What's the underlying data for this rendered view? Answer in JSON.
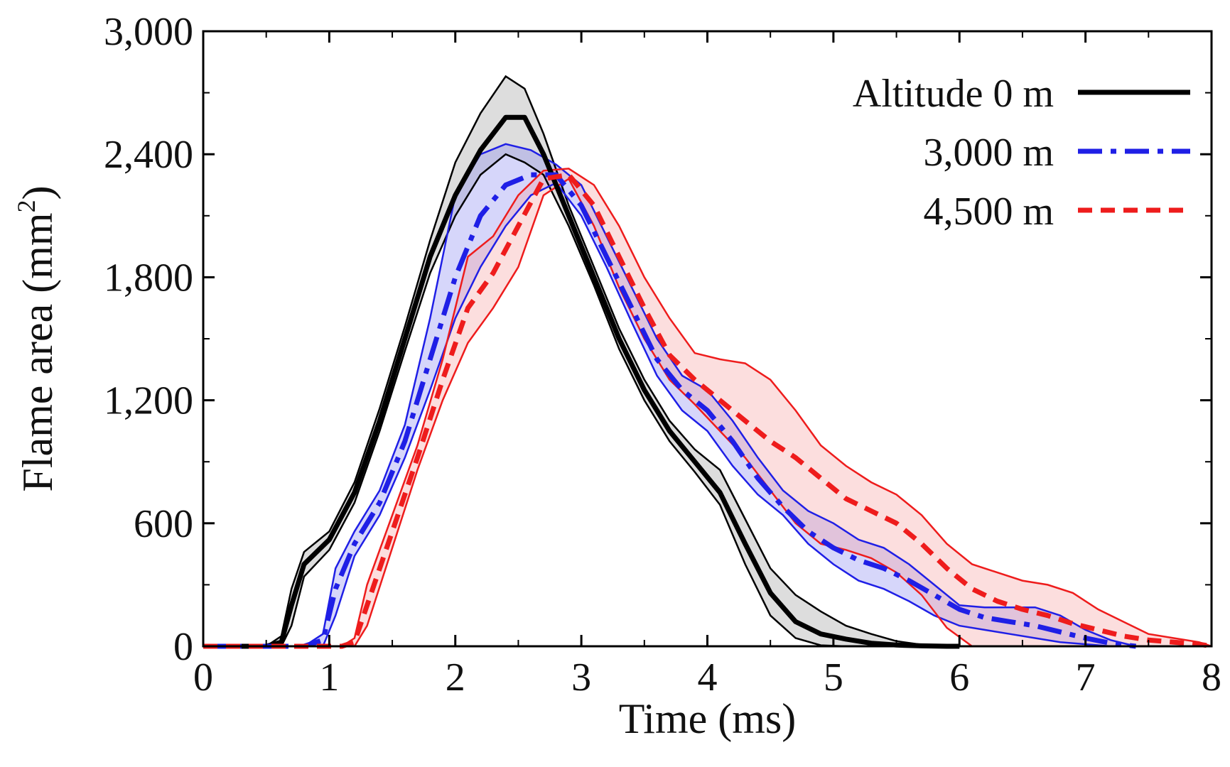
{
  "chart_data": {
    "type": "line",
    "title": "",
    "xlabel": "Time (ms)",
    "ylabel_main": "Flame area (mm",
    "ylabel_sup": "2",
    "ylabel_close": ")",
    "xlim": [
      0,
      8
    ],
    "ylim": [
      0,
      3000
    ],
    "xticks": [
      0,
      1,
      2,
      3,
      4,
      5,
      6,
      7,
      8
    ],
    "xtick_labels": [
      "0",
      "1",
      "2",
      "3",
      "4",
      "5",
      "6",
      "7",
      "8"
    ],
    "yticks": [
      0,
      600,
      1200,
      1800,
      2400,
      3000
    ],
    "ytick_labels": [
      "0",
      "600",
      "1,200",
      "1,800",
      "2,400",
      "3,000"
    ],
    "legend_position": "top-right",
    "series": [
      {
        "name": "Altitude 0 m",
        "color": "#000000",
        "band_color": "#9e9e9e",
        "dash": "solid",
        "x": [
          0,
          0.5,
          0.62,
          0.7,
          0.8,
          1.0,
          1.2,
          1.4,
          1.6,
          1.8,
          2.0,
          2.2,
          2.4,
          2.55,
          2.7,
          2.9,
          3.1,
          3.3,
          3.5,
          3.7,
          3.9,
          4.1,
          4.3,
          4.5,
          4.7,
          4.9,
          5.1,
          5.3,
          5.5,
          5.7,
          5.9,
          6.0
        ],
        "mean": [
          0,
          0,
          20,
          200,
          400,
          520,
          750,
          1100,
          1500,
          1900,
          2200,
          2420,
          2580,
          2580,
          2400,
          2100,
          1800,
          1500,
          1250,
          1050,
          900,
          750,
          500,
          260,
          120,
          60,
          35,
          15,
          6,
          2,
          0,
          0
        ],
        "upper": [
          0,
          0,
          50,
          280,
          460,
          560,
          800,
          1160,
          1560,
          1980,
          2360,
          2600,
          2780,
          2720,
          2500,
          2150,
          1850,
          1550,
          1300,
          1100,
          960,
          860,
          620,
          380,
          250,
          170,
          100,
          60,
          25,
          8,
          2,
          0
        ],
        "lower": [
          0,
          0,
          0,
          100,
          340,
          470,
          700,
          1050,
          1440,
          1820,
          2100,
          2300,
          2400,
          2360,
          2300,
          2050,
          1760,
          1450,
          1200,
          1000,
          850,
          690,
          400,
          150,
          40,
          5,
          0,
          0,
          0,
          0,
          0,
          0
        ]
      },
      {
        "name": "3,000 m",
        "color": "#1f1fe6",
        "band_color": "#8a8af0",
        "dash": "dashdot",
        "x": [
          0,
          0.8,
          0.95,
          1.05,
          1.2,
          1.4,
          1.6,
          1.8,
          2.0,
          2.2,
          2.4,
          2.6,
          2.8,
          3.0,
          3.2,
          3.4,
          3.6,
          3.8,
          4.0,
          4.2,
          4.4,
          4.6,
          4.8,
          5.0,
          5.2,
          5.4,
          5.6,
          5.8,
          6.0,
          6.2,
          6.4,
          6.6,
          6.8,
          7.0,
          7.2,
          7.4
        ],
        "mean": [
          0,
          0,
          30,
          280,
          500,
          700,
          1000,
          1400,
          1800,
          2100,
          2250,
          2300,
          2300,
          2150,
          1900,
          1650,
          1400,
          1250,
          1150,
          1000,
          820,
          680,
          560,
          480,
          420,
          380,
          320,
          250,
          180,
          140,
          120,
          100,
          70,
          40,
          15,
          0
        ],
        "upper": [
          0,
          0,
          60,
          380,
          560,
          760,
          1080,
          1600,
          2200,
          2400,
          2450,
          2420,
          2350,
          2250,
          2000,
          1750,
          1500,
          1320,
          1250,
          1100,
          920,
          760,
          660,
          600,
          520,
          480,
          400,
          300,
          200,
          190,
          190,
          190,
          150,
          80,
          30,
          0
        ],
        "lower": [
          0,
          0,
          0,
          150,
          440,
          640,
          920,
          1250,
          1600,
          1850,
          2050,
          2200,
          2260,
          2100,
          1850,
          1580,
          1320,
          1150,
          1050,
          880,
          740,
          640,
          500,
          400,
          320,
          280,
          220,
          150,
          100,
          80,
          60,
          40,
          20,
          10,
          0,
          0
        ]
      },
      {
        "name": "4,500 m",
        "color": "#ee1c1c",
        "band_color": "#f5a0a0",
        "dash": "dashed",
        "x": [
          0,
          1.1,
          1.2,
          1.3,
          1.5,
          1.7,
          1.9,
          2.1,
          2.3,
          2.5,
          2.7,
          2.9,
          3.1,
          3.3,
          3.5,
          3.7,
          3.9,
          4.1,
          4.3,
          4.5,
          4.7,
          4.9,
          5.1,
          5.3,
          5.5,
          5.7,
          5.9,
          6.1,
          6.3,
          6.5,
          6.7,
          6.9,
          7.1,
          7.3,
          7.5,
          7.7,
          7.9,
          8.0
        ],
        "mean": [
          0,
          0,
          20,
          200,
          560,
          920,
          1300,
          1650,
          1820,
          2050,
          2280,
          2300,
          2150,
          1900,
          1650,
          1420,
          1300,
          1200,
          1100,
          1000,
          920,
          820,
          720,
          660,
          600,
          500,
          380,
          280,
          220,
          180,
          150,
          110,
          80,
          50,
          30,
          20,
          10,
          0
        ],
        "upper": [
          0,
          0,
          40,
          300,
          640,
          980,
          1400,
          1900,
          2000,
          2200,
          2320,
          2330,
          2250,
          2050,
          1800,
          1600,
          1430,
          1400,
          1380,
          1300,
          1150,
          980,
          880,
          800,
          740,
          640,
          500,
          400,
          360,
          320,
          300,
          260,
          180,
          120,
          60,
          40,
          20,
          0
        ],
        "lower": [
          0,
          0,
          0,
          100,
          480,
          860,
          1200,
          1480,
          1650,
          1850,
          2200,
          2280,
          2050,
          1750,
          1500,
          1300,
          1180,
          1050,
          920,
          760,
          600,
          500,
          470,
          430,
          360,
          250,
          90,
          0,
          0,
          0,
          0,
          0,
          0,
          0,
          0,
          0,
          0,
          0
        ]
      }
    ]
  }
}
